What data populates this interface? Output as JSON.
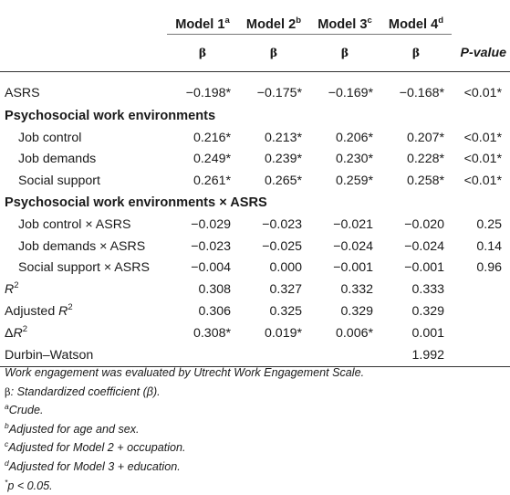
{
  "header": {
    "models": [
      {
        "label": "Model 1",
        "sup": "a"
      },
      {
        "label": "Model 2",
        "sup": "b"
      },
      {
        "label": "Model 3",
        "sup": "c"
      },
      {
        "label": "Model 4",
        "sup": "d"
      }
    ],
    "beta_symbol": "β",
    "pvalue_label": "P-value"
  },
  "rows": {
    "asrs": {
      "label": "ASRS",
      "m1": "−0.198*",
      "m2": "−0.175*",
      "m3": "−0.169*",
      "m4": "−0.168*",
      "p": "<0.01*"
    },
    "section1": {
      "label": "Psychosocial work environments"
    },
    "job_control": {
      "label": "Job control",
      "m1": "0.216*",
      "m2": "0.213*",
      "m3": "0.206*",
      "m4": "0.207*",
      "p": "<0.01*"
    },
    "job_demands": {
      "label": "Job demands",
      "m1": "0.249*",
      "m2": "0.239*",
      "m3": "0.230*",
      "m4": "0.228*",
      "p": "<0.01*"
    },
    "social_support": {
      "label": "Social support",
      "m1": "0.261*",
      "m2": "0.265*",
      "m3": "0.259*",
      "m4": "0.258*",
      "p": "<0.01*"
    },
    "section2": {
      "label": "Psychosocial work environments × ASRS"
    },
    "jc_x_asrs": {
      "label": "Job control × ASRS",
      "m1": "−0.029",
      "m2": "−0.023",
      "m3": "−0.021",
      "m4": "−0.020",
      "p": "0.25"
    },
    "jd_x_asrs": {
      "label": "Job demands × ASRS",
      "m1": "−0.023",
      "m2": "−0.025",
      "m3": "−0.024",
      "m4": "−0.024",
      "p": "0.14"
    },
    "ss_x_asrs": {
      "label": "Social support × ASRS",
      "m1": "−0.004",
      "m2": "0.000",
      "m3": "−0.001",
      "m4": "−0.001",
      "p": "0.96"
    },
    "r2": {
      "label_main": "R",
      "label_sup": "2",
      "m1": "0.308",
      "m2": "0.327",
      "m3": "0.332",
      "m4": "0.333",
      "p": ""
    },
    "adj_r2": {
      "label_prefix": "Adjusted ",
      "label_main": "R",
      "label_sup": "2",
      "m1": "0.306",
      "m2": "0.325",
      "m3": "0.329",
      "m4": "0.329",
      "p": ""
    },
    "delta_r2": {
      "label_prefix": "Δ",
      "label_main": "R",
      "label_sup": "2",
      "m1": "0.308*",
      "m2": "0.019*",
      "m3": "0.006*",
      "m4": "0.001",
      "p": ""
    },
    "durbin": {
      "label": "Durbin–Watson",
      "m1": "",
      "m2": "",
      "m3": "",
      "m4": "1.992",
      "p": ""
    }
  },
  "notes": {
    "n1": "Work engagement was evaluated by Utrecht Work Engagement Scale.",
    "n2_symbol": "β",
    "n2_text": ": Standardized coefficient (β).",
    "n3_sup": "a",
    "n3_text": "Crude.",
    "n4_sup": "b",
    "n4_text": "Adjusted for age and sex.",
    "n5_sup": "c",
    "n5_text": "Adjusted for Model 2 + occupation.",
    "n6_sup": "d",
    "n6_text": "Adjusted for Model 3 + education.",
    "n7_sup": "*",
    "n7_text": "p < 0.05."
  }
}
